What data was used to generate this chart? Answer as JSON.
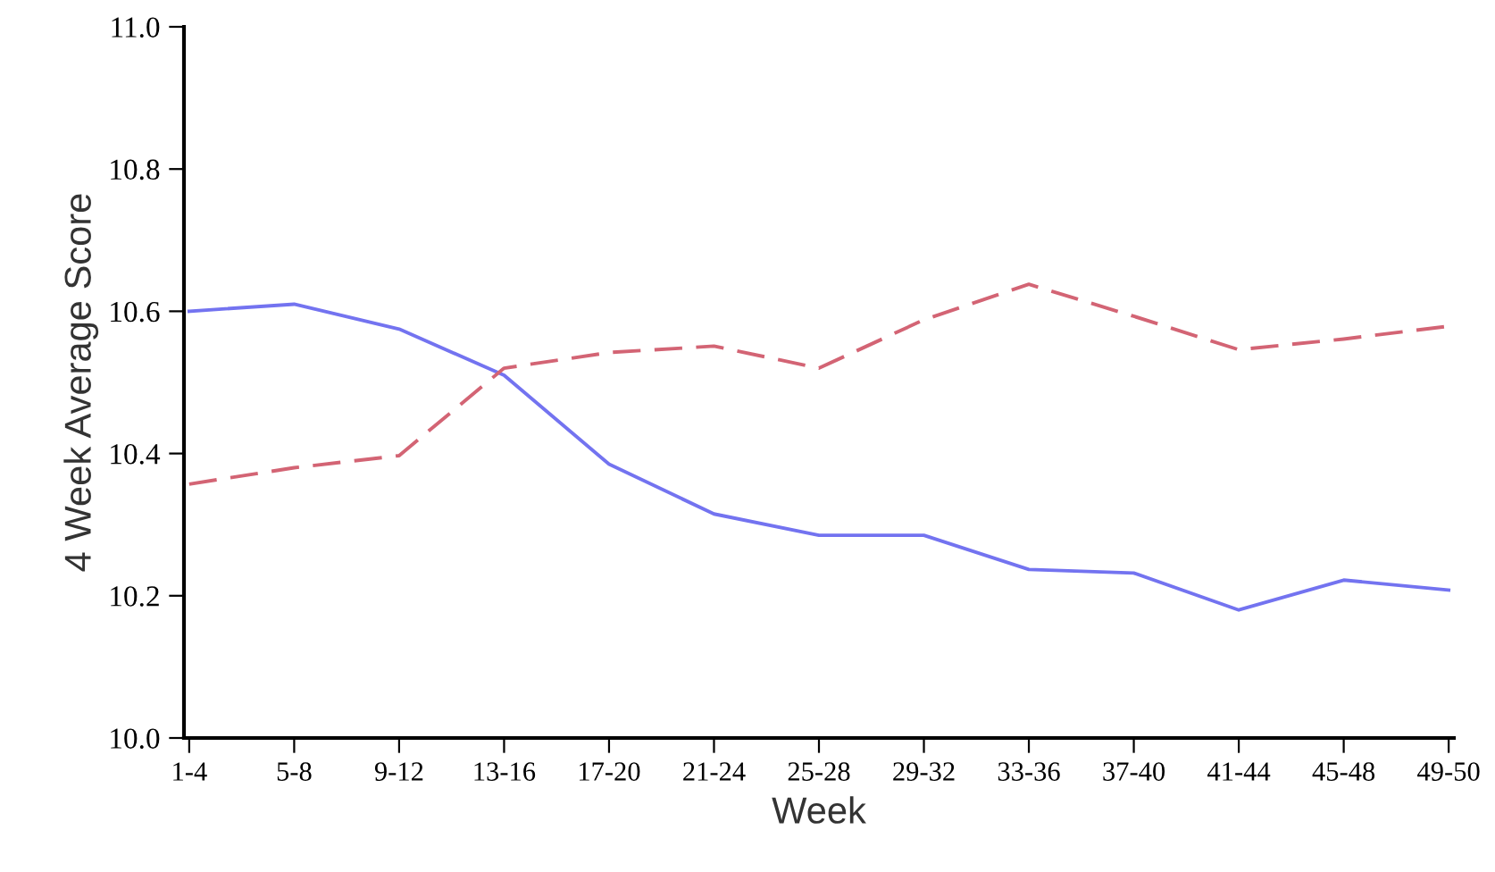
{
  "chart_data": {
    "type": "line",
    "xlabel": "Week",
    "ylabel": "4 Week Average Score",
    "categories": [
      "1-4",
      "5-8",
      "9-12",
      "13-16",
      "17-20",
      "21-24",
      "25-28",
      "29-32",
      "33-36",
      "37-40",
      "41-44",
      "45-48",
      "49-50"
    ],
    "series": [
      {
        "color": "#7373f0",
        "line_style": "solid",
        "values": [
          10.6,
          10.61,
          10.575,
          10.51,
          10.385,
          10.315,
          10.285,
          10.285,
          10.237,
          10.232,
          10.18,
          10.222,
          10.208
        ]
      },
      {
        "color": "#d36474",
        "line_style": "dashed",
        "values": [
          10.357,
          10.38,
          10.397,
          10.52,
          10.542,
          10.551,
          10.52,
          10.588,
          10.638,
          10.593,
          10.546,
          10.561,
          10.579
        ]
      }
    ],
    "ylim": [
      10.0,
      11.0
    ],
    "yticks": [
      {
        "value": 10,
        "label": "10.0"
      },
      10.2,
      10.4,
      {
        "value": 10.6,
        "label": "10.6"
      },
      10.8,
      {
        "value": 11,
        "label": "11.0"
      }
    ],
    "grid": false,
    "legend": false,
    "marker": "none"
  }
}
